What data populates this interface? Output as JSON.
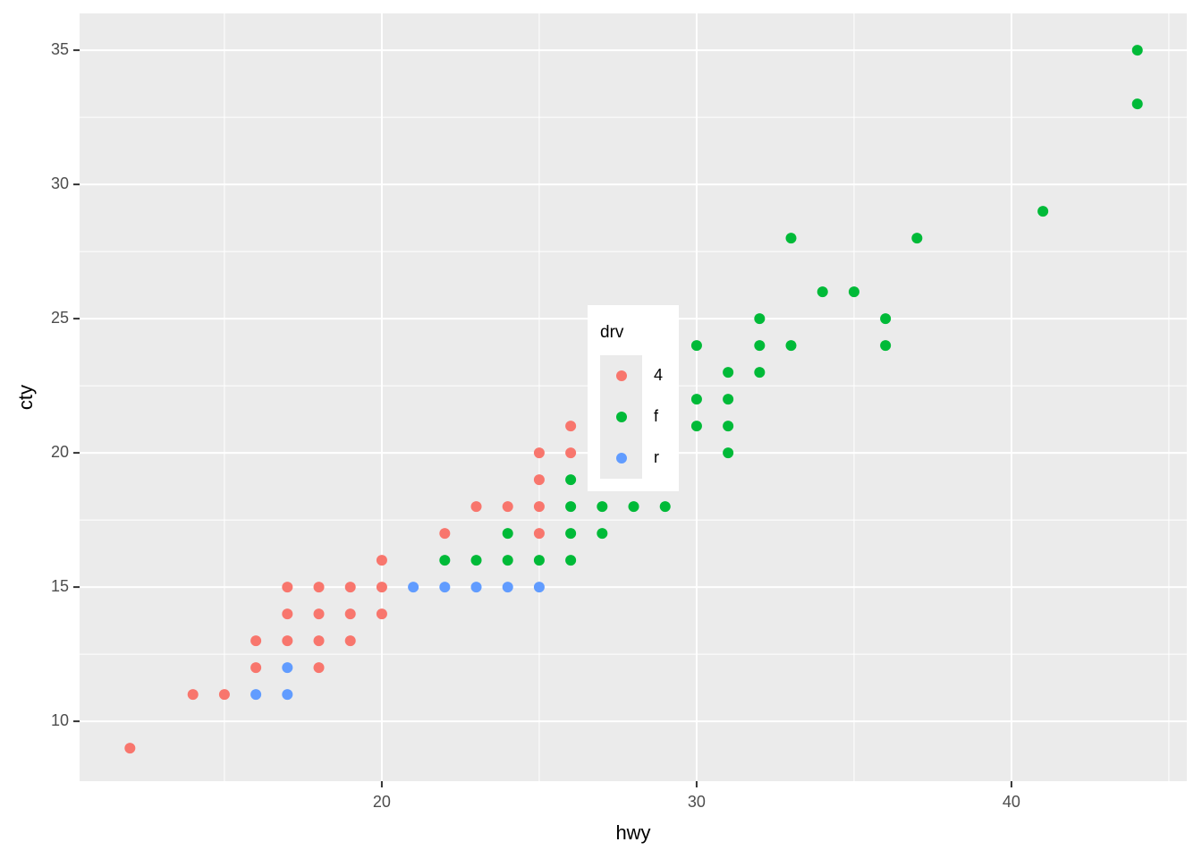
{
  "chart_data": {
    "type": "scatter",
    "x_label": "hwy",
    "y_label": "cty",
    "legend_title": "drv",
    "xlim": [
      10.4,
      45.57
    ],
    "ylim": [
      7.77,
      36.37
    ],
    "xticks": [
      20,
      30,
      40
    ],
    "yticks": [
      10,
      15,
      20,
      25,
      30,
      35
    ],
    "grid": true,
    "legend_position": "inside",
    "series": [
      {
        "name": "4",
        "color": "#F8766D",
        "x": [
          12,
          14,
          15,
          16,
          16,
          17,
          17,
          17,
          18,
          18,
          18,
          18,
          19,
          19,
          19,
          20,
          20,
          20,
          22,
          23,
          24,
          25,
          25,
          25,
          25,
          26,
          26
        ],
        "values": [
          9,
          11,
          11,
          12,
          13,
          13,
          14,
          15,
          12,
          13,
          14,
          15,
          13,
          14,
          15,
          14,
          15,
          16,
          17,
          18,
          18,
          20,
          19,
          18,
          17,
          21,
          20
        ]
      },
      {
        "name": "f",
        "color": "#00BA38",
        "x": [
          22,
          23,
          24,
          24,
          25,
          26,
          26,
          26,
          26,
          27,
          27,
          28,
          29,
          30,
          30,
          30,
          31,
          31,
          31,
          31,
          32,
          32,
          32,
          33,
          33,
          34,
          35,
          36,
          36,
          37,
          41,
          44,
          44
        ],
        "values": [
          16,
          16,
          16,
          17,
          16,
          16,
          17,
          18,
          19,
          17,
          18,
          18,
          18,
          21,
          22,
          24,
          20,
          21,
          22,
          23,
          23,
          24,
          25,
          24,
          28,
          26,
          26,
          24,
          25,
          28,
          29,
          33,
          35
        ]
      },
      {
        "name": "r",
        "color": "#619CFF",
        "x": [
          16,
          17,
          17,
          21,
          22,
          23,
          24,
          25
        ],
        "values": [
          11,
          11,
          12,
          15,
          15,
          15,
          15,
          15
        ]
      }
    ]
  }
}
